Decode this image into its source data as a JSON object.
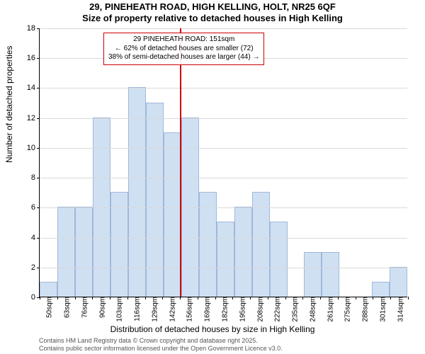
{
  "title_line1": "29, PINEHEATH ROAD, HIGH KELLING, HOLT, NR25 6QF",
  "title_line2": "Size of property relative to detached houses in High Kelling",
  "y_axis_label": "Number of detached properties",
  "x_axis_label": "Distribution of detached houses by size in High Kelling",
  "footer_line1": "Contains HM Land Registry data © Crown copyright and database right 2025.",
  "footer_line2": "Contains public sector information licensed under the Open Government Licence v3.0.",
  "chart": {
    "type": "histogram",
    "ylim": [
      0,
      18
    ],
    "ytick_step": 2,
    "bar_fill": "#cfe0f3",
    "bar_stroke": "#9fb8d9",
    "grid_color": "#d9d9d9",
    "background_color": "#ffffff",
    "reference_color": "#cc0000",
    "reference_bin_index": 8,
    "categories": [
      "50sqm",
      "63sqm",
      "76sqm",
      "90sqm",
      "103sqm",
      "116sqm",
      "129sqm",
      "142sqm",
      "156sqm",
      "169sqm",
      "182sqm",
      "195sqm",
      "208sqm",
      "222sqm",
      "235sqm",
      "248sqm",
      "261sqm",
      "275sqm",
      "288sqm",
      "301sqm",
      "314sqm"
    ],
    "values": [
      1,
      6,
      6,
      12,
      7,
      14,
      13,
      11,
      12,
      7,
      5,
      6,
      7,
      5,
      0,
      3,
      3,
      0,
      0,
      1,
      2
    ]
  },
  "annotation": {
    "line1": "29 PINEHEATH ROAD: 151sqm",
    "line2": "← 62% of detached houses are smaller (72)",
    "line3": "38% of semi-detached houses are larger (44) →",
    "border_color": "#cc0000"
  }
}
